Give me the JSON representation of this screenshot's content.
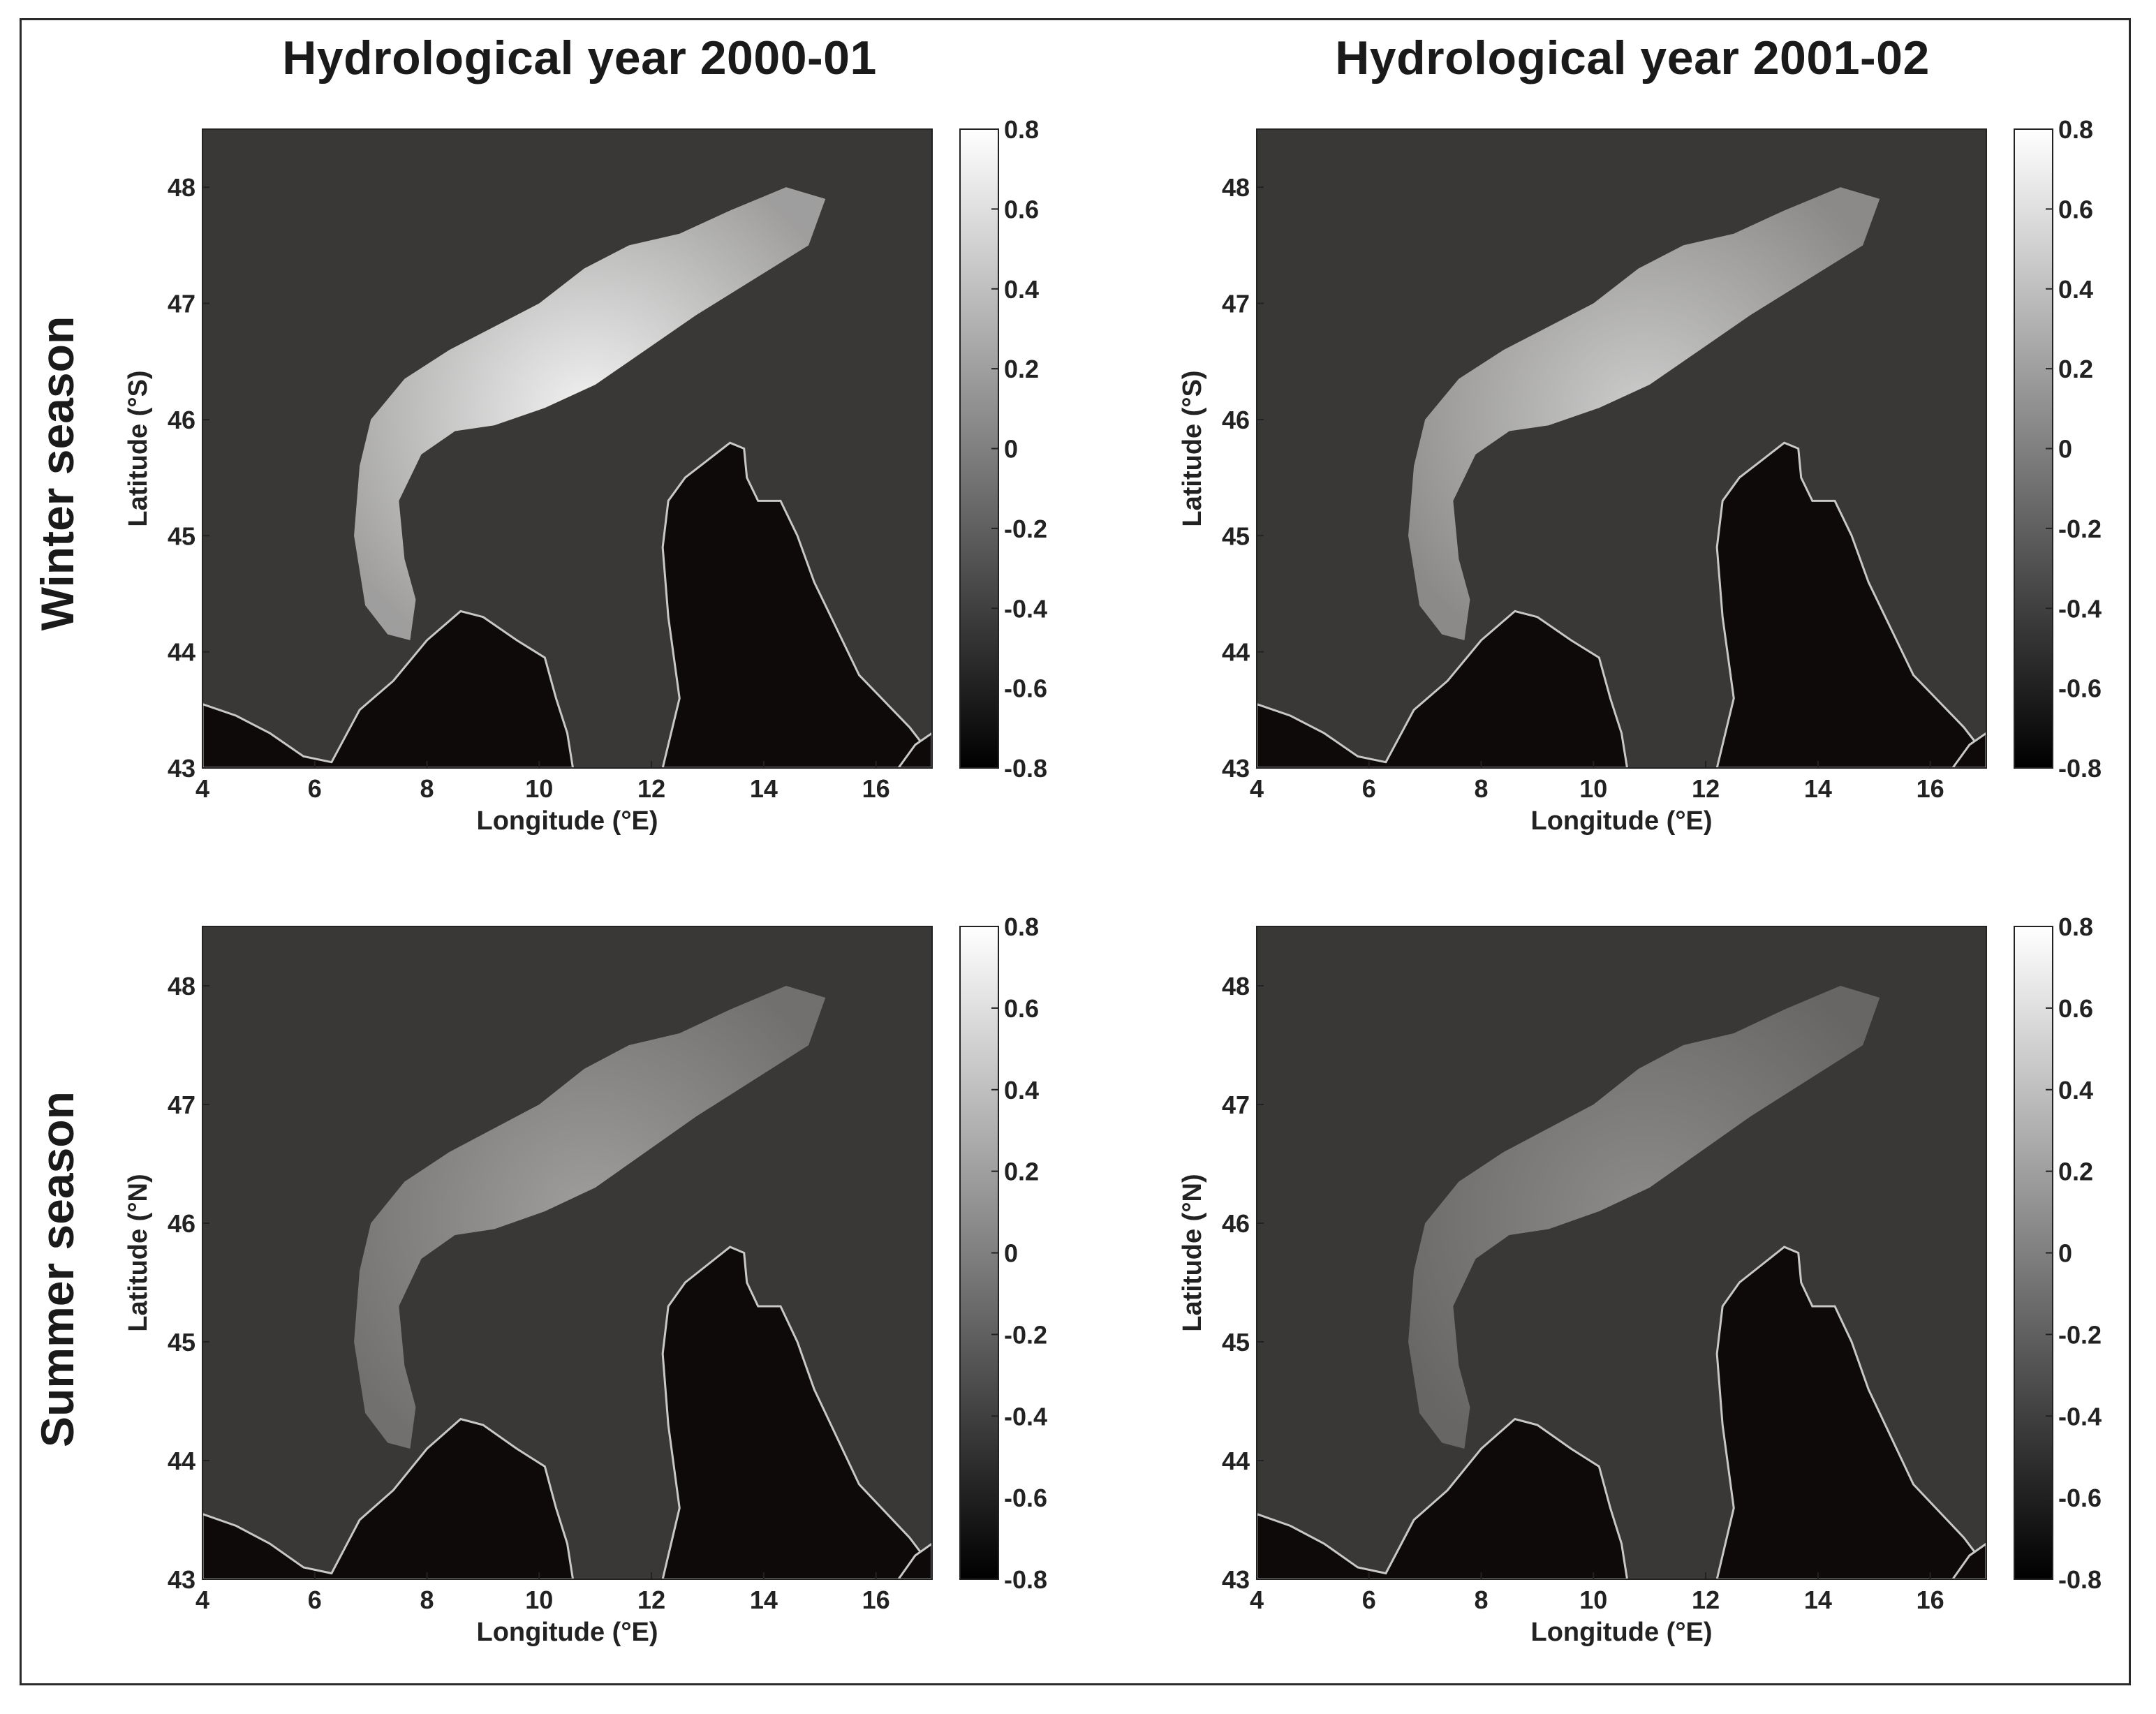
{
  "figure": {
    "column_titles": [
      "Hydrological year 2000-01",
      "Hydrological year 2001-02"
    ],
    "row_titles": [
      "Winter season",
      "Summer season"
    ]
  },
  "colors": {
    "sea": "#0d0a09",
    "land_dark": "#3a3836",
    "snow": "#f2f2f2",
    "coastline": "#c8c8c8",
    "colorbar_top": "#ffffff",
    "colorbar_bottom": "#000000"
  },
  "chart_data": [
    {
      "type": "heatmap",
      "id": "winter-2000-01",
      "column_title": "Hydrological year 2000-01",
      "row_title": "Winter season",
      "xlabel": "Longitude (°E)",
      "ylabel": "Latitude (°S)",
      "xlim": [
        4,
        17
      ],
      "ylim": [
        43,
        48.5
      ],
      "xticks": [
        4,
        6,
        8,
        10,
        12,
        14,
        16
      ],
      "yticks": [
        43,
        44,
        45,
        46,
        47,
        48
      ],
      "colorbar": {
        "min": -0.8,
        "max": 0.8,
        "ticks": [
          "0.8",
          "0.6",
          "0.4",
          "0.2",
          "0",
          "-0.2",
          "-0.4",
          "-0.6",
          "-0.8"
        ]
      },
      "snow_intensity": 1.0
    },
    {
      "type": "heatmap",
      "id": "winter-2001-02",
      "column_title": "Hydrological year 2001-02",
      "row_title": "Winter season",
      "xlabel": "Longitude (°E)",
      "ylabel": "Latitude (°S)",
      "xlim": [
        4,
        17
      ],
      "ylim": [
        43,
        48.5
      ],
      "xticks": [
        4,
        6,
        8,
        10,
        12,
        14,
        16
      ],
      "yticks": [
        43,
        44,
        45,
        46,
        47,
        48
      ],
      "colorbar": {
        "min": -0.8,
        "max": 0.8,
        "ticks": [
          "0.8",
          "0.6",
          "0.4",
          "0.2",
          "0",
          "-0.2",
          "-0.4",
          "-0.6",
          "-0.8"
        ]
      },
      "snow_intensity": 0.8
    },
    {
      "type": "heatmap",
      "id": "summer-2000-01",
      "column_title": "Hydrological year 2000-01",
      "row_title": "Summer season",
      "xlabel": "Longitude (°E)",
      "ylabel": "Latitude (°N)",
      "xlim": [
        4,
        17
      ],
      "ylim": [
        43,
        48.5
      ],
      "xticks": [
        4,
        6,
        8,
        10,
        12,
        14,
        16
      ],
      "yticks": [
        43,
        44,
        45,
        46,
        47,
        48
      ],
      "colorbar": {
        "min": -0.8,
        "max": 0.8,
        "ticks": [
          "0.8",
          "0.6",
          "0.4",
          "0.2",
          "0",
          "-0.2",
          "-0.4",
          "-0.6",
          "-0.8"
        ]
      },
      "snow_intensity": 0.55
    },
    {
      "type": "heatmap",
      "id": "summer-2001-02",
      "column_title": "Hydrological year 2001-02",
      "row_title": "Summer season",
      "xlabel": "Longitude (°E)",
      "ylabel": "Latitude (°N)",
      "xlim": [
        4,
        17
      ],
      "ylim": [
        43,
        48.5
      ],
      "xticks": [
        4,
        6,
        8,
        10,
        12,
        14,
        16
      ],
      "yticks": [
        43,
        44,
        45,
        46,
        47,
        48
      ],
      "colorbar": {
        "min": -0.8,
        "max": 0.8,
        "ticks": [
          "0.8",
          "0.6",
          "0.4",
          "0.2",
          "0",
          "-0.2",
          "-0.4",
          "-0.6",
          "-0.8"
        ]
      },
      "snow_intensity": 0.45
    }
  ]
}
